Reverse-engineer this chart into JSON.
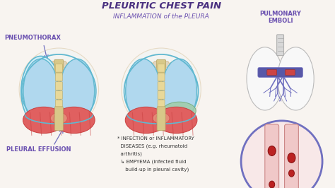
{
  "bg_color": "#f8f4f0",
  "title": "PLEURITIC CHEST PAIN",
  "subtitle": "INFLAMMATION of the PLEURA",
  "title_color": "#4a3080",
  "subtitle_color": "#6a50b0",
  "label_pneumothorax": "PNEUMOTHORAX",
  "label_pleural": "PLEURAL EFFUSION",
  "label_pulmonary": "PULMONARY\nEMBOLI",
  "label_color": "#6a50b0",
  "annotation_line1": "* INFECTION or INFLAMMATORY",
  "annotation_line2": "  DISEASES (e.g. rheumatoid",
  "annotation_line3": "  arthritis)",
  "annotation_line4": "  ↳ EMPYEMA (infected fluid",
  "annotation_line5": "     build-up in pleural cavity)",
  "annotation_color": "#333333",
  "lung_fill_blue": "#b0d8ee",
  "lung_fill_light": "#cce8f4",
  "lung_outline": "#60b8d0",
  "muscle_red": "#e06060",
  "muscle_stripe": "#c84040",
  "effusion_green": "#a0cca8",
  "rib_color": "#c8a060",
  "spine_fill": "#d8c888",
  "spine_outline": "#b8a868",
  "vessel_purple": "#7070c0",
  "vessel_blue_dark": "#5858a8",
  "vessel_red": "#cc4444",
  "clot_red": "#bb2222",
  "zoom_bg": "#f8e8e8",
  "zoom_border": "#7070c0",
  "lung_right_bg": "#f5f5f5",
  "trachea_fill": "#d8d8d8",
  "arrow_color": "#7070c0"
}
